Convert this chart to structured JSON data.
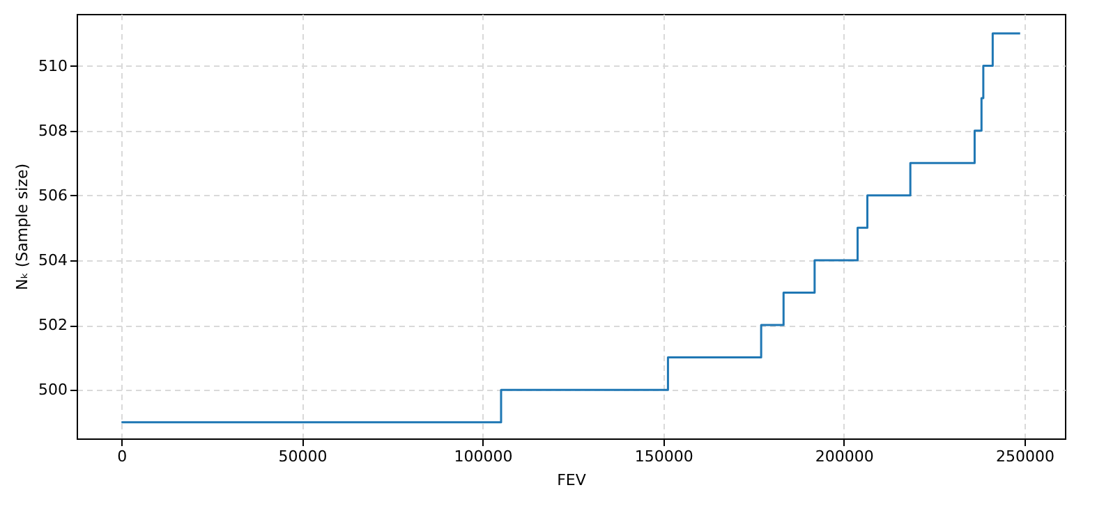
{
  "chart_data": {
    "type": "step",
    "xlabel": "FEV",
    "ylabel": "Nₖ (Sample size)",
    "series": [
      {
        "color": "#1f77b4",
        "x": [
          0,
          105100,
          151300,
          177100,
          183300,
          191900,
          203800,
          206500,
          218400,
          236200,
          238100,
          238600,
          241200,
          248800
        ],
        "values": [
          499,
          500,
          501,
          502,
          503,
          504,
          505,
          506,
          507,
          508,
          509,
          510,
          511,
          511
        ]
      }
    ],
    "xlim": [
      -12400,
      261200
    ],
    "xticks": [
      0,
      50000,
      100000,
      150000,
      200000,
      250000
    ],
    "ylim": [
      498.5,
      511.6
    ],
    "yticks": [
      500,
      502,
      504,
      506,
      508,
      510
    ],
    "grid": true
  }
}
